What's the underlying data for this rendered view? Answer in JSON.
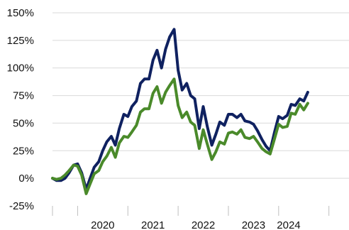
{
  "chart_data": {
    "type": "line",
    "title": "",
    "xlabel": "",
    "ylabel": "",
    "ylim": [
      -25,
      150
    ],
    "xlim": [
      2018.5,
      2024.4
    ],
    "grid": true,
    "legend": "none",
    "y_ticks": [
      {
        "value": 150,
        "label": "150%"
      },
      {
        "value": 125,
        "label": "125%"
      },
      {
        "value": 100,
        "label": "100%"
      },
      {
        "value": 75,
        "label": "75%"
      },
      {
        "value": 50,
        "label": "50%"
      },
      {
        "value": 25,
        "label": "25%"
      },
      {
        "value": 0,
        "label": "0%"
      },
      {
        "value": -25,
        "label": "-25%"
      }
    ],
    "x_tick_lines": [
      2018.5,
      2019.0,
      2020.0,
      2021.0,
      2022.0,
      2023.0,
      2024.0
    ],
    "x_labels": [
      {
        "value": 2019.5,
        "label": "2020"
      },
      {
        "value": 2020.5,
        "label": "2021"
      },
      {
        "value": 2021.5,
        "label": "2022"
      },
      {
        "value": 2022.5,
        "label": "2023"
      },
      {
        "value": 2023.2,
        "label": "2024"
      }
    ],
    "series": [
      {
        "color": "#0f2160",
        "points": [
          [
            2018.5,
            0
          ],
          [
            2018.58,
            -2
          ],
          [
            2018.67,
            -2
          ],
          [
            2018.75,
            0
          ],
          [
            2018.83,
            5
          ],
          [
            2018.92,
            12
          ],
          [
            2019.0,
            13
          ],
          [
            2019.08,
            5
          ],
          [
            2019.17,
            -10
          ],
          [
            2019.25,
            0
          ],
          [
            2019.33,
            10
          ],
          [
            2019.42,
            15
          ],
          [
            2019.5,
            25
          ],
          [
            2019.58,
            33
          ],
          [
            2019.67,
            38
          ],
          [
            2019.75,
            30
          ],
          [
            2019.83,
            45
          ],
          [
            2019.92,
            58
          ],
          [
            2020.0,
            56
          ],
          [
            2020.08,
            65
          ],
          [
            2020.17,
            70
          ],
          [
            2020.25,
            86
          ],
          [
            2020.33,
            90
          ],
          [
            2020.42,
            90
          ],
          [
            2020.5,
            107
          ],
          [
            2020.58,
            116
          ],
          [
            2020.67,
            100
          ],
          [
            2020.75,
            117
          ],
          [
            2020.83,
            128
          ],
          [
            2020.92,
            135
          ],
          [
            2021.0,
            98
          ],
          [
            2021.08,
            80
          ],
          [
            2021.17,
            86
          ],
          [
            2021.25,
            75
          ],
          [
            2021.33,
            72
          ],
          [
            2021.42,
            45
          ],
          [
            2021.5,
            65
          ],
          [
            2021.58,
            47
          ],
          [
            2021.67,
            30
          ],
          [
            2021.75,
            40
          ],
          [
            2021.83,
            51
          ],
          [
            2021.92,
            48
          ],
          [
            2022.0,
            58
          ],
          [
            2022.08,
            58
          ],
          [
            2022.17,
            55
          ],
          [
            2022.25,
            58
          ],
          [
            2022.33,
            52
          ],
          [
            2022.42,
            51
          ],
          [
            2022.5,
            49
          ],
          [
            2022.58,
            43
          ],
          [
            2022.67,
            35
          ],
          [
            2022.75,
            29
          ],
          [
            2022.83,
            25
          ],
          [
            2022.92,
            42
          ],
          [
            2023.0,
            56
          ],
          [
            2023.08,
            54
          ],
          [
            2023.17,
            57
          ],
          [
            2023.25,
            67
          ],
          [
            2023.33,
            66
          ],
          [
            2023.42,
            72
          ],
          [
            2023.5,
            70
          ],
          [
            2023.58,
            78
          ]
        ]
      },
      {
        "color": "#4a8a2a",
        "points": [
          [
            2018.5,
            0
          ],
          [
            2018.58,
            -1
          ],
          [
            2018.67,
            0
          ],
          [
            2018.75,
            3
          ],
          [
            2018.83,
            7
          ],
          [
            2018.92,
            12
          ],
          [
            2019.0,
            11
          ],
          [
            2019.08,
            3
          ],
          [
            2019.17,
            -14
          ],
          [
            2019.25,
            -5
          ],
          [
            2019.33,
            4
          ],
          [
            2019.42,
            7
          ],
          [
            2019.5,
            15
          ],
          [
            2019.58,
            20
          ],
          [
            2019.67,
            28
          ],
          [
            2019.75,
            19
          ],
          [
            2019.83,
            32
          ],
          [
            2019.92,
            38
          ],
          [
            2020.0,
            37
          ],
          [
            2020.08,
            42
          ],
          [
            2020.17,
            48
          ],
          [
            2020.25,
            60
          ],
          [
            2020.33,
            63
          ],
          [
            2020.42,
            63
          ],
          [
            2020.5,
            77
          ],
          [
            2020.58,
            83
          ],
          [
            2020.67,
            68
          ],
          [
            2020.75,
            78
          ],
          [
            2020.83,
            84
          ],
          [
            2020.92,
            90
          ],
          [
            2021.0,
            66
          ],
          [
            2021.08,
            55
          ],
          [
            2021.17,
            60
          ],
          [
            2021.25,
            51
          ],
          [
            2021.33,
            48
          ],
          [
            2021.42,
            27
          ],
          [
            2021.5,
            44
          ],
          [
            2021.58,
            31
          ],
          [
            2021.67,
            17
          ],
          [
            2021.75,
            24
          ],
          [
            2021.83,
            33
          ],
          [
            2021.92,
            31
          ],
          [
            2022.0,
            41
          ],
          [
            2022.08,
            42
          ],
          [
            2022.17,
            40
          ],
          [
            2022.25,
            44
          ],
          [
            2022.33,
            37
          ],
          [
            2022.42,
            36
          ],
          [
            2022.5,
            38
          ],
          [
            2022.58,
            33
          ],
          [
            2022.67,
            27
          ],
          [
            2022.75,
            24
          ],
          [
            2022.83,
            22
          ],
          [
            2022.92,
            36
          ],
          [
            2023.0,
            49
          ],
          [
            2023.08,
            46
          ],
          [
            2023.17,
            47
          ],
          [
            2023.25,
            59
          ],
          [
            2023.33,
            58
          ],
          [
            2023.42,
            67
          ],
          [
            2023.5,
            62
          ],
          [
            2023.58,
            68
          ]
        ]
      }
    ]
  }
}
